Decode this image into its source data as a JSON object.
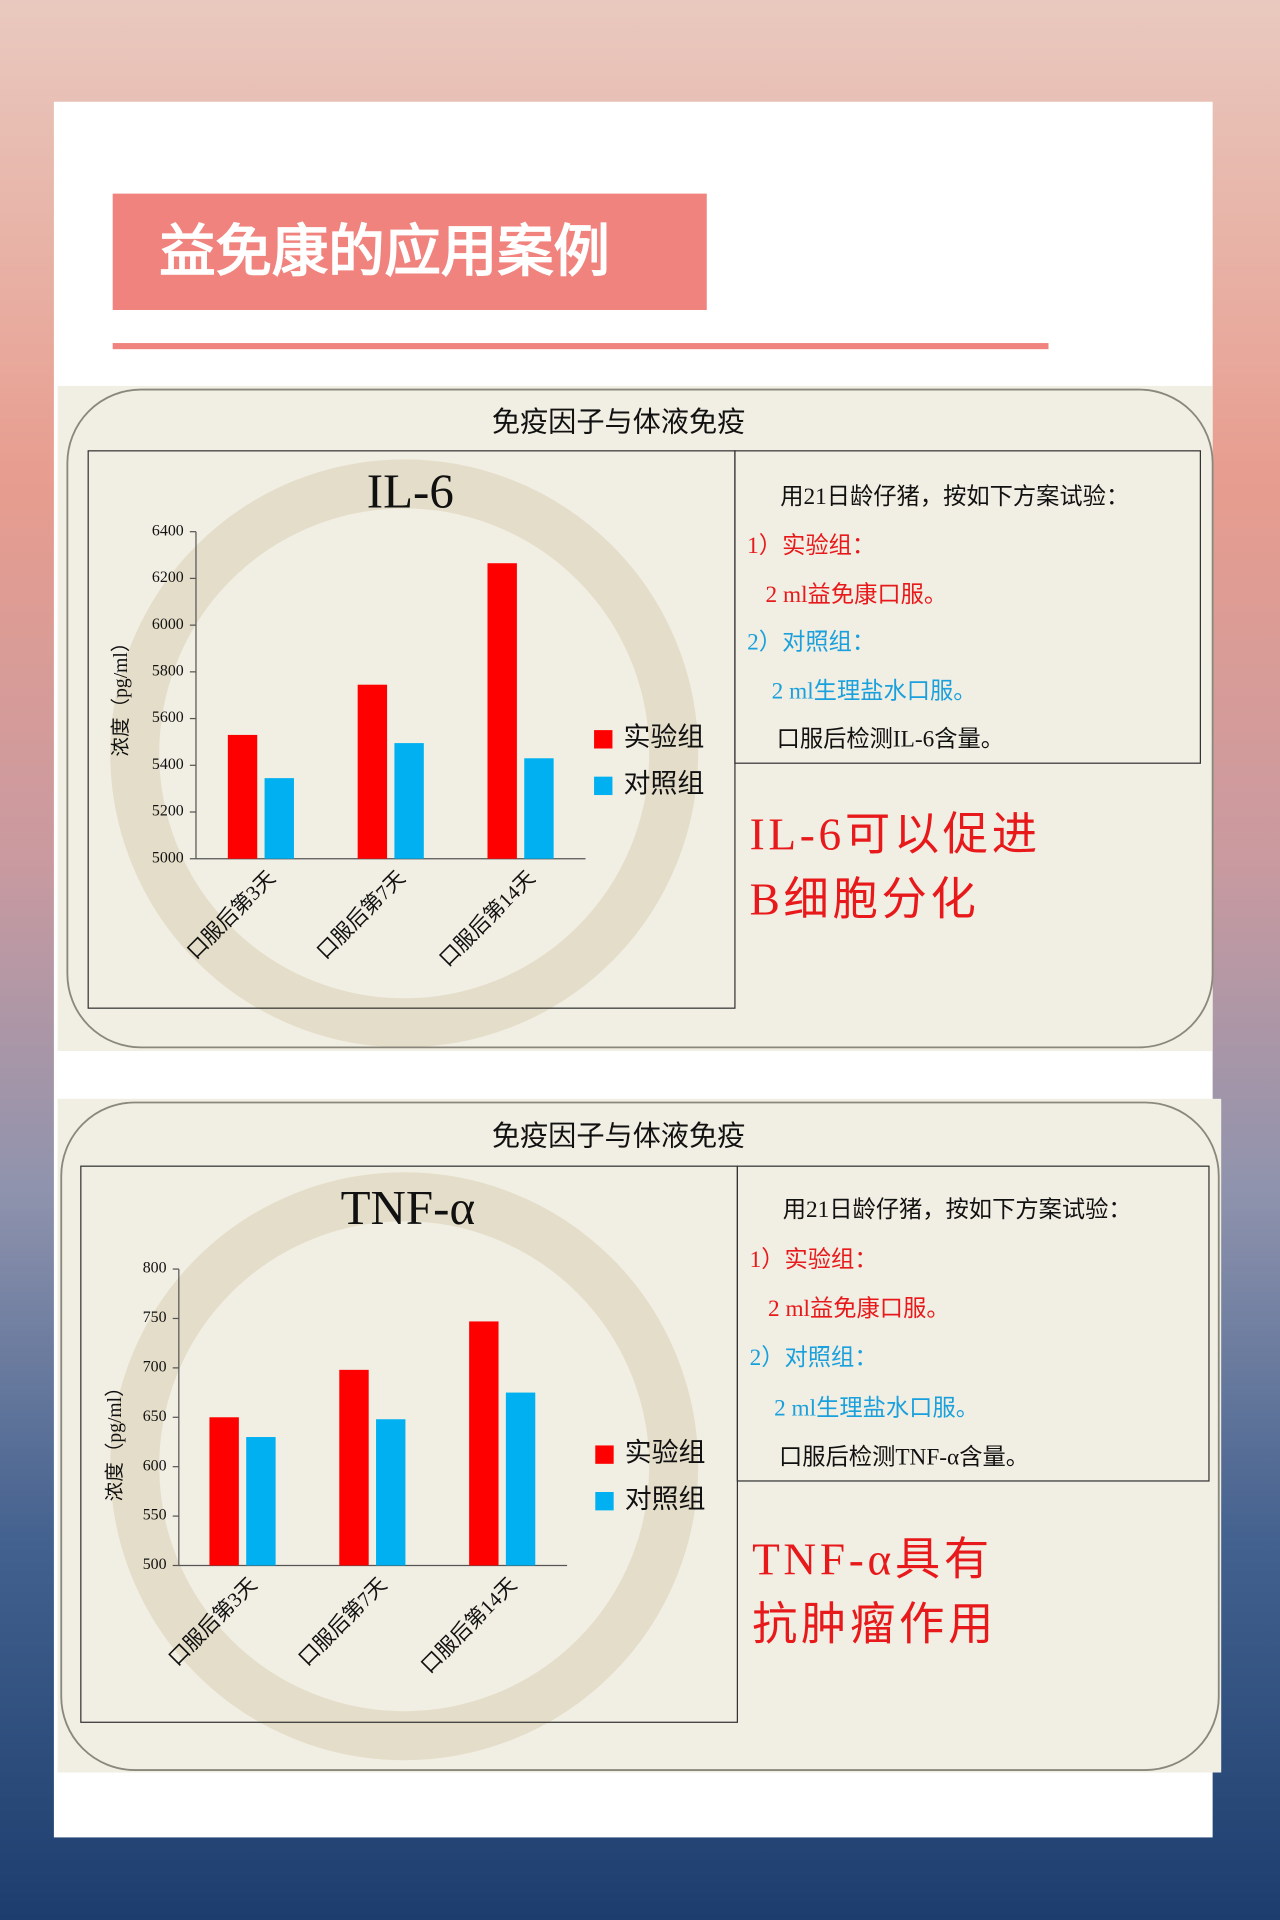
{
  "title": "益免康的应用案例",
  "panels": [
    {
      "heading": "免疫因子与体液免疫",
      "notes": [
        {
          "text": "用21日龄仔猪，按如下方案试验：",
          "color": "#111111"
        },
        {
          "text": "1）实验组：",
          "color": "#e8191b"
        },
        {
          "text": "2 ml益免康口服。",
          "color": "#e8191b"
        },
        {
          "text": "2）对照组：",
          "color": "#1aa0dc"
        },
        {
          "text": "2 ml生理盐水口服。",
          "color": "#1aa0dc"
        },
        {
          "text": "口服后检测IL-6含量。",
          "color": "#111111"
        }
      ],
      "conclusion": [
        "IL-6可以促进",
        "B细胞分化"
      ]
    },
    {
      "heading": "免疫因子与体液免疫",
      "notes": [
        {
          "text": "用21日龄仔猪，按如下方案试验：",
          "color": "#111111"
        },
        {
          "text": "1）实验组：",
          "color": "#e8191b"
        },
        {
          "text": "2 ml益免康口服。",
          "color": "#e8191b"
        },
        {
          "text": "2）对照组：",
          "color": "#1aa0dc"
        },
        {
          "text": "2 ml生理盐水口服。",
          "color": "#1aa0dc"
        },
        {
          "text": "口服后检测TNF-α含量。",
          "color": "#111111"
        }
      ],
      "conclusion": [
        "TNF-α具有",
        "抗肿瘤作用"
      ]
    }
  ],
  "chart_data": [
    {
      "type": "bar",
      "title": "IL-6",
      "y_label": "浓度（pg/ml）",
      "categories": [
        "口服后第3天",
        "口服后第7天",
        "口服后第14天"
      ],
      "series": [
        {
          "name": "实验组",
          "color": "#ff0000",
          "values": [
            5530,
            5745,
            6265
          ]
        },
        {
          "name": "对照组",
          "color": "#00b0f0",
          "values": [
            5345,
            5495,
            5430
          ]
        }
      ],
      "ylim": [
        5000,
        6400
      ],
      "yticks": [
        5000,
        5200,
        5400,
        5600,
        5800,
        6000,
        6200,
        6400
      ],
      "grid": false
    },
    {
      "type": "bar",
      "title": "TNF-α",
      "y_label": "浓度（pg/ml）",
      "categories": [
        "口服后第3天",
        "口服后第7天",
        "口服后第14天"
      ],
      "series": [
        {
          "name": "实验组",
          "color": "#ff0000",
          "values": [
            650,
            698,
            747
          ]
        },
        {
          "name": "对照组",
          "color": "#00b0f0",
          "values": [
            630,
            648,
            675
          ]
        }
      ],
      "ylim": [
        500,
        800
      ],
      "yticks": [
        500,
        550,
        600,
        650,
        700,
        750,
        800
      ],
      "grid": false
    }
  ]
}
